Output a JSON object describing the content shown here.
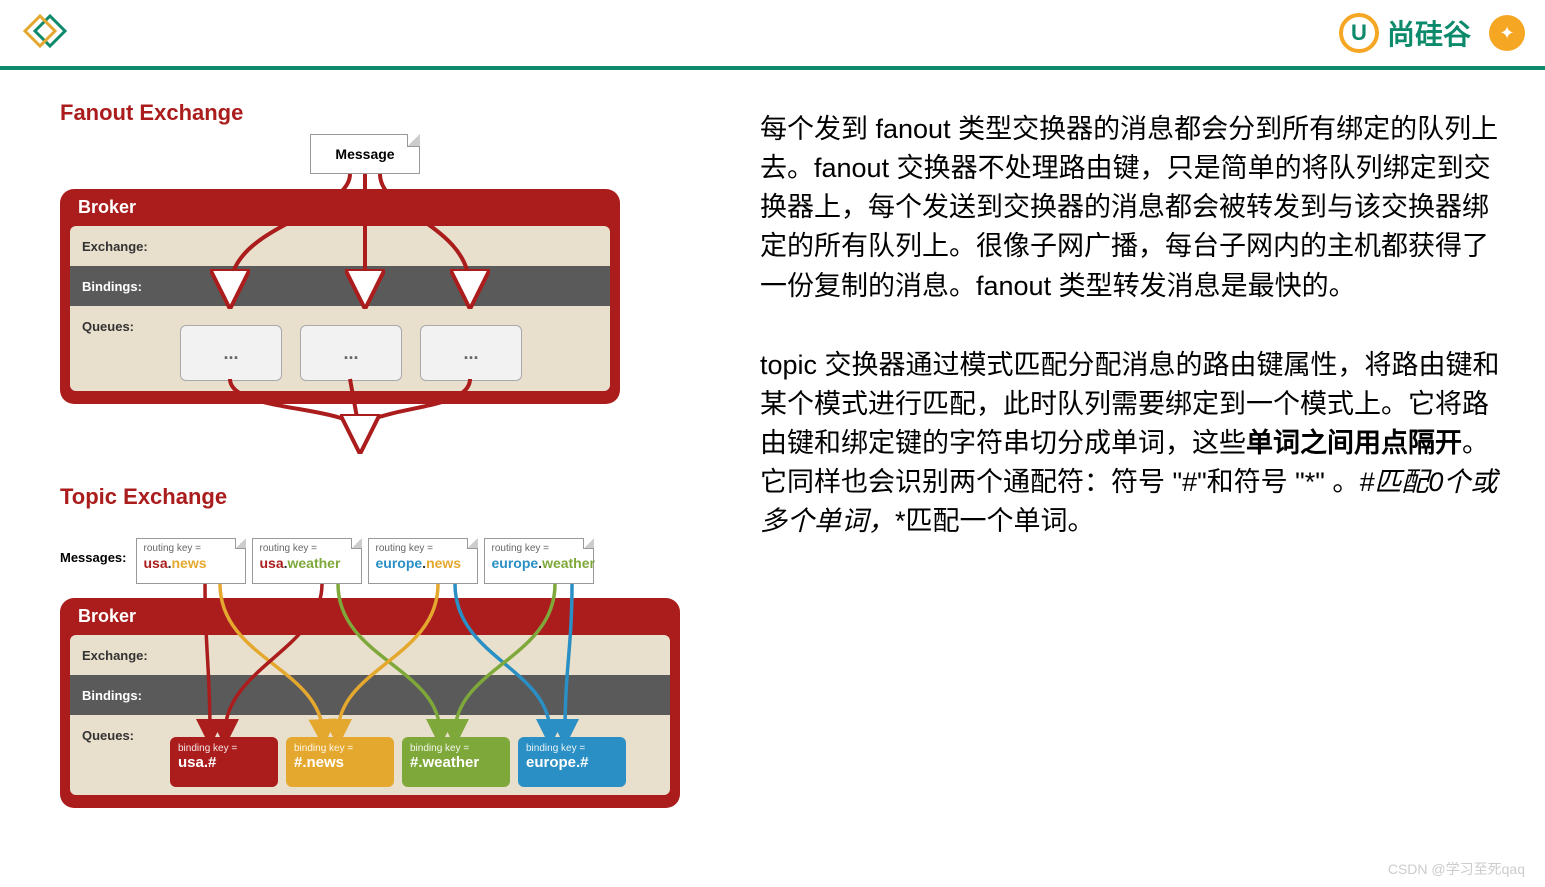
{
  "brand": {
    "text": "尚硅谷",
    "icon_letter": "U"
  },
  "fanout": {
    "title": "Fanout Exchange",
    "message_label": "Message",
    "broker_label": "Broker",
    "exchange_label": "Exchange:",
    "bindings_label": "Bindings:",
    "queues_label": "Queues:",
    "queue_placeholder": "...",
    "colors": {
      "broker_bg": "#ab1d1d",
      "inner_bg": "#e8e0cc",
      "bindings_bg": "#5a5a5a",
      "line": "#ab1d1d"
    },
    "explain": "每个发到 fanout 类型交换器的消息都会分到所有绑定的队列上去。fanout 交换器不处理路由键，只是简单的将队列绑定到交换器上，每个发送到交换器的消息都会被转发到与该交换器绑定的所有队列上。很像子网广播，每台子网内的主机都获得了一份复制的消息。fanout 类型转发消息是最快的。"
  },
  "topic": {
    "title": "Topic Exchange",
    "messages_label": "Messages:",
    "broker_label": "Broker",
    "exchange_label": "Exchange:",
    "bindings_label": "Bindings:",
    "queues_label": "Queues:",
    "routing_key_label": "routing key =",
    "binding_key_label": "binding key =",
    "routing_keys": [
      {
        "parts": [
          "usa",
          ".",
          "news"
        ],
        "colors": [
          "#ab1d1d",
          "#333",
          "#e5a82e"
        ]
      },
      {
        "parts": [
          "usa",
          ".",
          "weather"
        ],
        "colors": [
          "#ab1d1d",
          "#333",
          "#7fa83a"
        ]
      },
      {
        "parts": [
          "europe",
          ".",
          "news"
        ],
        "colors": [
          "#2a8fc4",
          "#333",
          "#e5a82e"
        ]
      },
      {
        "parts": [
          "europe",
          ".",
          "weather"
        ],
        "colors": [
          "#2a8fc4",
          "#333",
          "#7fa83a"
        ]
      }
    ],
    "binding_keys": [
      {
        "val": "usa.#",
        "bg": "#ab1d1d"
      },
      {
        "val": "#.news",
        "bg": "#e5a82e"
      },
      {
        "val": "#.weather",
        "bg": "#7fa83a"
      },
      {
        "val": "europe.#",
        "bg": "#2a8fc4"
      }
    ],
    "line_colors": {
      "red": "#ab1d1d",
      "orange": "#e5a82e",
      "green": "#7fa83a",
      "blue": "#2a8fc4"
    },
    "explain_parts": [
      {
        "t": "topic 交换器通过模式匹配分配消息的路由键属性，将路由键和某个模式进行匹配，此时队列需要绑定到一个模式上。它将路由键和绑定键的字符串切分成单词，这些",
        "cls": ""
      },
      {
        "t": "单词之间用点隔开",
        "cls": "bold"
      },
      {
        "t": "。它同样也会识别两个通配符：符号 \"#\"和符号 \"*\" 。",
        "cls": ""
      },
      {
        "t": "#匹配0个或多个单词，",
        "cls": "italic"
      },
      {
        "t": "*匹配一个单词。",
        "cls": ""
      }
    ]
  },
  "watermark": "CSDN @学习至死qaq"
}
